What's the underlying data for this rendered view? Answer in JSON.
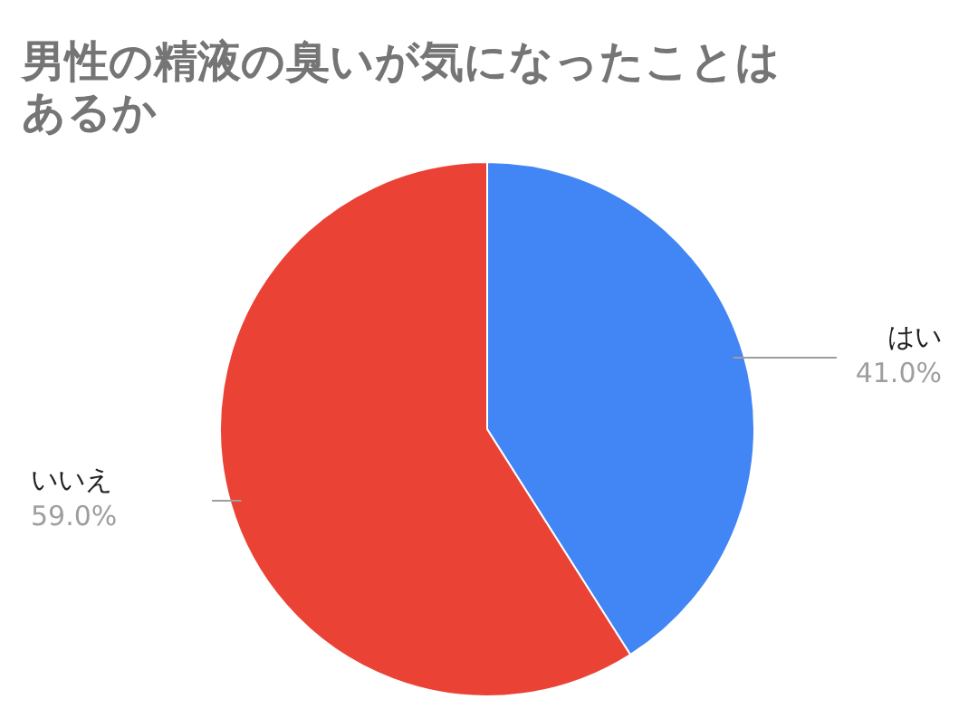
{
  "chart_data": {
    "type": "pie",
    "title": "男性の精液の臭いが気になったことはあるか",
    "categories": [
      "はい",
      "いいえ"
    ],
    "values": [
      41.0,
      59.0
    ],
    "value_labels": [
      "41.0%",
      "59.0%"
    ],
    "colors": [
      "#4285f4",
      "#ea4335"
    ],
    "legend": false
  }
}
